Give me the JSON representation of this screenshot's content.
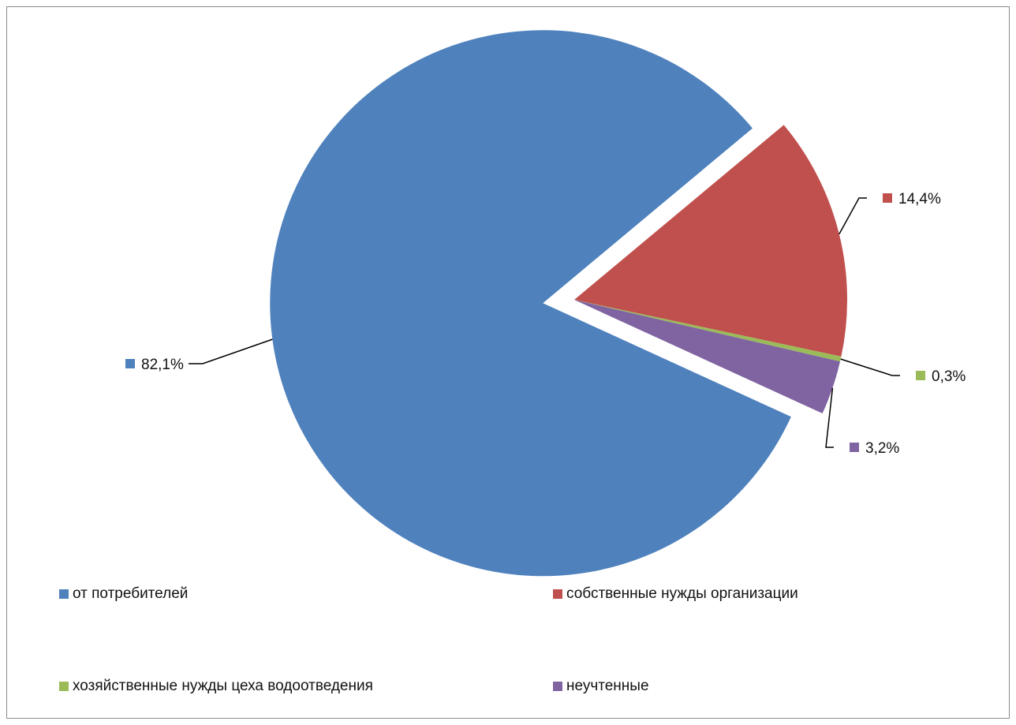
{
  "chart_data": {
    "type": "pie",
    "slices": [
      {
        "name": "от потребителей",
        "value": 82.1,
        "label": "82,1%",
        "color": "#4F81BD"
      },
      {
        "name": "собственные нужды организации",
        "value": 14.4,
        "label": "14,4%",
        "color": "#C0504D"
      },
      {
        "name": "хозяйственные нужды цеха водоотведения",
        "value": 0.3,
        "label": "0,3%",
        "color": "#9BBB59"
      },
      {
        "name": "неучтенные",
        "value": 3.2,
        "label": "3,2%",
        "color": "#8064A2"
      }
    ],
    "exploded_slice": "от потребителей",
    "legend_position": "bottom"
  }
}
